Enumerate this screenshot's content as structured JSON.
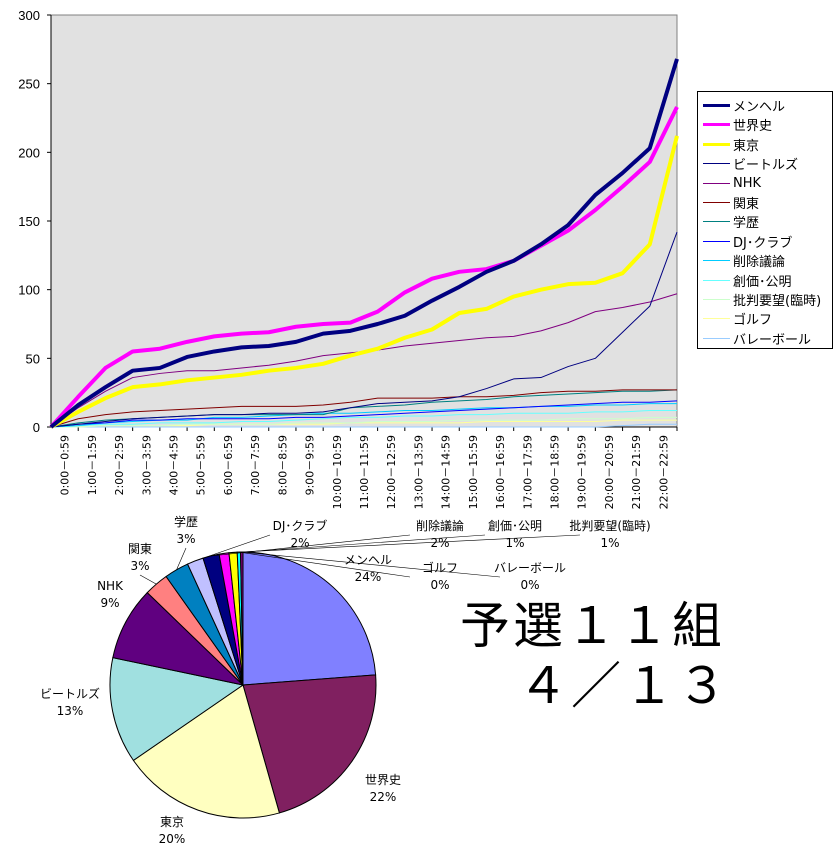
{
  "chart_data": [
    {
      "type": "line",
      "title": "",
      "xlabel": "",
      "ylabel": "",
      "ylim": [
        0,
        300
      ],
      "yticks": [
        "0",
        "50",
        "100",
        "150",
        "200",
        "250",
        "300"
      ],
      "grid": false,
      "legend_position": "right",
      "categories": [
        "0:00－0:59",
        "1:00－1:59",
        "2:00－2:59",
        "3:00－3:59",
        "4:00－4:59",
        "5:00－5:59",
        "6:00－6:59",
        "7:00－7:59",
        "8:00－8:59",
        "9:00－9:59",
        "10:00－10:59",
        "11:00－11:59",
        "12:00－12:59",
        "13:00－13:59",
        "14:00－14:59",
        "15:00－15:59",
        "16:00－16:59",
        "17:00－17:59",
        "18:00－18:59",
        "19:00－19:59",
        "20:00－20:59",
        "21:00－21:59",
        "22:00－22:59"
      ],
      "start_value": 0,
      "series": [
        {
          "name": "メンヘル",
          "color": "#000080",
          "width": 4,
          "values": [
            16,
            29,
            41,
            43,
            51,
            55,
            58,
            59,
            62,
            68,
            70,
            75,
            81,
            92,
            102,
            113,
            121,
            133,
            147,
            169,
            185,
            203,
            268
          ]
        },
        {
          "name": "世界史",
          "color": "#ff00ff",
          "width": 4,
          "values": [
            22,
            43,
            55,
            57,
            62,
            66,
            68,
            69,
            73,
            75,
            76,
            84,
            98,
            108,
            113,
            115,
            121,
            132,
            143,
            158,
            175,
            193,
            233
          ]
        },
        {
          "name": "東京",
          "color": "#ffff00",
          "width": 4,
          "values": [
            11,
            21,
            29,
            31,
            34,
            36,
            38,
            41,
            43,
            46,
            52,
            57,
            65,
            71,
            83,
            86,
            95,
            100,
            104,
            105,
            112,
            133,
            212
          ]
        },
        {
          "name": "ビートルズ",
          "color": "#000080",
          "width": 1,
          "values": [
            2,
            4,
            6,
            7,
            8,
            9,
            9,
            10,
            10,
            11,
            14,
            17,
            18,
            19,
            22,
            28,
            35,
            36,
            44,
            50,
            69,
            88,
            142
          ]
        },
        {
          "name": "NHK",
          "color": "#800080",
          "width": 1,
          "values": [
            14,
            26,
            36,
            39,
            41,
            41,
            43,
            45,
            48,
            52,
            54,
            56,
            59,
            61,
            63,
            65,
            66,
            70,
            76,
            84,
            87,
            91,
            97
          ]
        },
        {
          "name": "関東",
          "color": "#800000",
          "width": 1,
          "values": [
            6,
            9,
            11,
            12,
            13,
            14,
            15,
            15,
            15,
            16,
            18,
            21,
            21,
            21,
            22,
            22,
            23,
            25,
            26,
            26,
            27,
            27,
            27
          ]
        },
        {
          "name": "学歴",
          "color": "#008080",
          "width": 1,
          "values": [
            3,
            5,
            6,
            7,
            8,
            9,
            9,
            9,
            9,
            9,
            14,
            15,
            16,
            18,
            19,
            20,
            22,
            23,
            24,
            25,
            26,
            26,
            27
          ]
        },
        {
          "name": "DJ･クラブ",
          "color": "#0000ff",
          "width": 1,
          "values": [
            2,
            3,
            5,
            5,
            6,
            6,
            6,
            6,
            7,
            7,
            8,
            9,
            10,
            11,
            12,
            13,
            14,
            15,
            16,
            17,
            18,
            18,
            19
          ]
        },
        {
          "name": "削除議論",
          "color": "#00ccff",
          "width": 1,
          "values": [
            1,
            3,
            4,
            5,
            5,
            7,
            7,
            8,
            9,
            10,
            10,
            11,
            12,
            12,
            13,
            14,
            14,
            15,
            15,
            16,
            16,
            17,
            17
          ]
        },
        {
          "name": "創価･公明",
          "color": "#66ffff",
          "width": 1,
          "values": [
            1,
            2,
            2,
            3,
            3,
            3,
            4,
            4,
            5,
            6,
            7,
            7,
            8,
            8,
            9,
            9,
            10,
            10,
            10,
            11,
            11,
            12,
            12
          ]
        },
        {
          "name": "批判要望(臨時)",
          "color": "#ccffcc",
          "width": 1,
          "values": [
            0,
            1,
            1,
            1,
            2,
            2,
            2,
            2,
            3,
            3,
            3,
            4,
            4,
            4,
            5,
            5,
            5,
            5,
            6,
            6,
            6,
            7,
            7
          ]
        },
        {
          "name": "ゴルフ",
          "color": "#ffff99",
          "width": 1,
          "values": [
            0,
            1,
            1,
            1,
            1,
            2,
            2,
            2,
            2,
            2,
            3,
            3,
            3,
            3,
            3,
            4,
            4,
            4,
            4,
            4,
            5,
            5,
            5
          ]
        },
        {
          "name": "バレーボール",
          "color": "#99ccff",
          "width": 1,
          "values": [
            0,
            0,
            0,
            0,
            0,
            0,
            0,
            0,
            0,
            0,
            0,
            0,
            0,
            0,
            0,
            0,
            0,
            0,
            0,
            0,
            1,
            2,
            2
          ]
        }
      ]
    },
    {
      "type": "pie",
      "title": "",
      "slices": [
        {
          "name": "メンヘル",
          "label": "24%",
          "value": 24,
          "color": "#8080ff"
        },
        {
          "name": "世界史",
          "label": "22%",
          "value": 22,
          "color": "#802060"
        },
        {
          "name": "東京",
          "label": "20%",
          "value": 20,
          "color": "#ffffc0"
        },
        {
          "name": "ビートルズ",
          "label": "13%",
          "value": 13,
          "color": "#a0e0e0"
        },
        {
          "name": "NHK",
          "label": "9%",
          "value": 9,
          "color": "#600080"
        },
        {
          "name": "関東",
          "label": "3%",
          "value": 3,
          "color": "#ff8080"
        },
        {
          "name": "学歴",
          "label": "3%",
          "value": 3,
          "color": "#0080c0"
        },
        {
          "name": "DJ･クラブ",
          "label": "2%",
          "value": 2,
          "color": "#c0c0ff"
        },
        {
          "name": "削除議論",
          "label": "2%",
          "value": 2,
          "color": "#000080"
        },
        {
          "name": "創価･公明",
          "label": "1%",
          "value": 1.2,
          "color": "#ff00ff"
        },
        {
          "name": "批判要望(臨時)",
          "label": "1%",
          "value": 1,
          "color": "#ffff00"
        },
        {
          "name": "ゴルフ",
          "label": "0%",
          "value": 0.4,
          "color": "#00ffff"
        },
        {
          "name": "バレーボール",
          "label": "0%",
          "value": 0.3,
          "color": "#800080"
        }
      ]
    }
  ],
  "headline": {
    "line1": "予選１１組",
    "line2": "４／１３"
  }
}
